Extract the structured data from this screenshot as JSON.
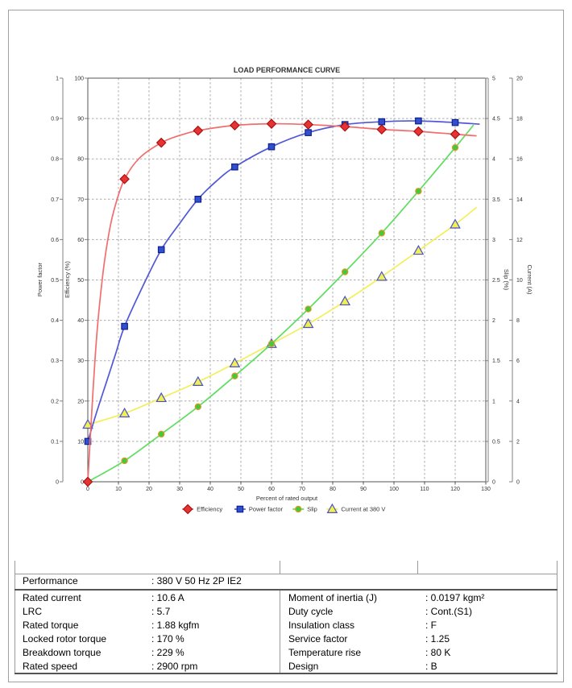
{
  "page": {
    "background": "#ffffff",
    "border_color": "#a0a0a0"
  },
  "chart_data": {
    "type": "line",
    "title": "LOAD PERFORMANCE CURVE",
    "xlabel": "Percent of rated output",
    "grid": true,
    "legend_position": "bottom",
    "colors": {
      "grid": "#ababab",
      "frame": "#555555",
      "axis": "#808080",
      "text": "#333333"
    },
    "x_axis": {
      "range": [
        0,
        130
      ],
      "tick_step": 10
    },
    "y_axes": [
      {
        "id": "pf",
        "label": "Power factor",
        "range": [
          0,
          1
        ],
        "tick_step": 0.1
      },
      {
        "id": "eff",
        "label": "Efficiency (%)",
        "range": [
          0,
          100
        ],
        "tick_step": 10
      },
      {
        "id": "slip",
        "label": "Slip (%)",
        "range": [
          0,
          5
        ],
        "tick_step": 0.5
      },
      {
        "id": "cur",
        "label": "Current (A)",
        "range": [
          0,
          20
        ],
        "tick_step": 2
      }
    ],
    "x": [
      0,
      12,
      24,
      36,
      48,
      60,
      72,
      84,
      96,
      108,
      120
    ],
    "series": [
      {
        "name": "Efficiency",
        "axis": "eff",
        "marker": "diamond",
        "line_color": "#f26d6d",
        "marker_fill": "#e63333",
        "marker_edge": "#aa1111",
        "values": [
          0,
          75,
          84,
          87,
          88.3,
          88.7,
          88.5,
          88,
          87.3,
          86.8,
          86.1
        ],
        "curve": [
          [
            0,
            0
          ],
          [
            1.5,
            20
          ],
          [
            3,
            37
          ],
          [
            5,
            52
          ],
          [
            7,
            62
          ],
          [
            9,
            68.5
          ],
          [
            12,
            75
          ],
          [
            17,
            80.3
          ],
          [
            24,
            84
          ],
          [
            30,
            85.8
          ],
          [
            36,
            87
          ],
          [
            48,
            88.3
          ],
          [
            60,
            88.7
          ],
          [
            72,
            88.5
          ],
          [
            84,
            88
          ],
          [
            96,
            87.3
          ],
          [
            108,
            86.8
          ],
          [
            120,
            86.1
          ],
          [
            127,
            85.7
          ]
        ]
      },
      {
        "name": "Power factor",
        "axis": "pf",
        "marker": "square",
        "line_color": "#5158d6",
        "marker_fill": "#3050d0",
        "marker_edge": "#101f8a",
        "values": [
          0.1,
          0.385,
          0.575,
          0.7,
          0.78,
          0.83,
          0.865,
          0.885,
          0.892,
          0.894,
          0.89
        ],
        "curve": [
          [
            0,
            0.1
          ],
          [
            3,
            0.175
          ],
          [
            6,
            0.245
          ],
          [
            9,
            0.315
          ],
          [
            12,
            0.385
          ],
          [
            18,
            0.485
          ],
          [
            24,
            0.575
          ],
          [
            30,
            0.64
          ],
          [
            36,
            0.7
          ],
          [
            42,
            0.745
          ],
          [
            48,
            0.78
          ],
          [
            60,
            0.83
          ],
          [
            72,
            0.865
          ],
          [
            84,
            0.885
          ],
          [
            96,
            0.892
          ],
          [
            108,
            0.894
          ],
          [
            120,
            0.89
          ],
          [
            128,
            0.886
          ]
        ]
      },
      {
        "name": "Slip",
        "axis": "slip",
        "marker": "circle",
        "line_color": "#5fdd5f",
        "marker_fill": "#3ecc3e",
        "marker_edge": "#dd9922",
        "values": [
          0,
          0.26,
          0.59,
          0.93,
          1.31,
          1.71,
          2.14,
          2.6,
          3.08,
          3.6,
          4.14
        ],
        "curve": [
          [
            0,
            0
          ],
          [
            12,
            0.26
          ],
          [
            24,
            0.59
          ],
          [
            36,
            0.93
          ],
          [
            48,
            1.31
          ],
          [
            60,
            1.71
          ],
          [
            72,
            2.14
          ],
          [
            84,
            2.6
          ],
          [
            96,
            3.08
          ],
          [
            108,
            3.6
          ],
          [
            120,
            4.14
          ],
          [
            126,
            4.42
          ]
        ]
      },
      {
        "name": "Current at 380 V",
        "axis": "cur",
        "marker": "triangle",
        "line_color": "#f3ef5a",
        "marker_fill": "#f2ee55",
        "marker_edge": "#4a52c4",
        "values": [
          2.83,
          3.39,
          4.15,
          4.95,
          5.87,
          6.83,
          7.82,
          8.94,
          10.16,
          11.45,
          12.75
        ],
        "curve": [
          [
            0,
            2.83
          ],
          [
            12,
            3.39
          ],
          [
            24,
            4.15
          ],
          [
            36,
            4.95
          ],
          [
            48,
            5.87
          ],
          [
            60,
            6.83
          ],
          [
            72,
            7.82
          ],
          [
            84,
            8.94
          ],
          [
            96,
            10.16
          ],
          [
            108,
            11.45
          ],
          [
            120,
            12.75
          ],
          [
            127,
            13.6
          ]
        ]
      }
    ]
  },
  "table": {
    "performance": {
      "label": "Performance",
      "value": ": 380 V 50 Hz 2P IE2"
    },
    "left_rows": [
      {
        "label": "Rated current",
        "value": ": 10.6 A"
      },
      {
        "label": "LRC",
        "value": ": 5.7"
      },
      {
        "label": "Rated torque",
        "value": ": 1.88 kgfm"
      },
      {
        "label": "Locked rotor torque",
        "value": ": 170 %"
      },
      {
        "label": "Breakdown torque",
        "value": ": 229 %"
      },
      {
        "label": "Rated speed",
        "value": ": 2900 rpm"
      }
    ],
    "right_rows": [
      {
        "label": "Moment of inertia (J)",
        "value": ": 0.0197 kgm²"
      },
      {
        "label": "Duty cycle",
        "value": ": Cont.(S1)"
      },
      {
        "label": "Insulation class",
        "value": ": F"
      },
      {
        "label": "Service factor",
        "value": ": 1.25"
      },
      {
        "label": "Temperature rise",
        "value": ": 80 K"
      },
      {
        "label": "Design",
        "value": ": B"
      }
    ]
  }
}
